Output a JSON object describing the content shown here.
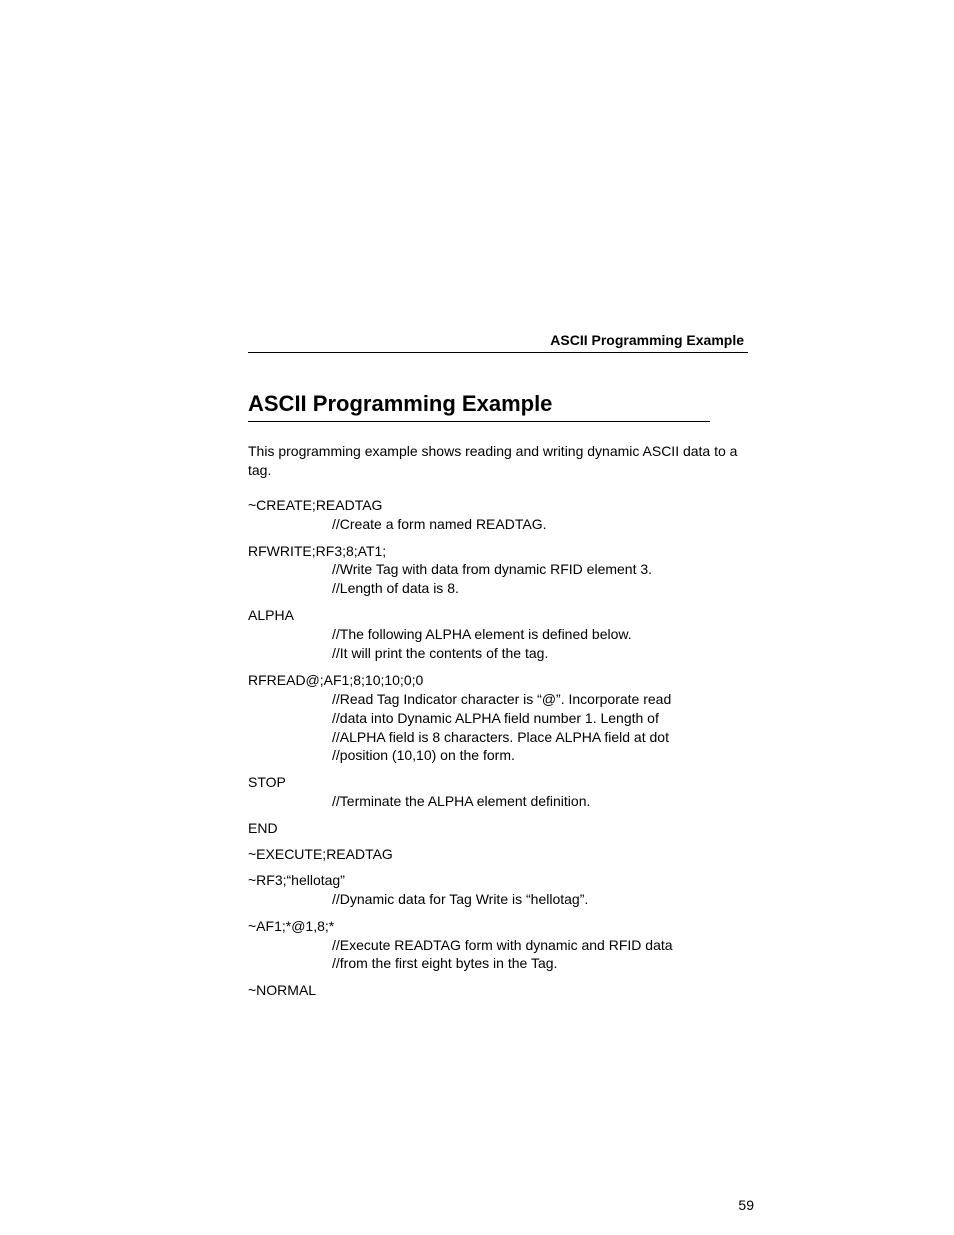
{
  "running_header": "ASCII Programming Example",
  "section_title": "ASCII Programming Example",
  "intro": "This programming example shows reading and writing dynamic ASCII data to a tag.",
  "blocks": [
    {
      "cmd": "~CREATE;READTAG",
      "comments": [
        "//Create a form named READTAG."
      ]
    },
    {
      "cmd": "RFWRITE;RF3;8;AT1;",
      "comments": [
        "//Write Tag with data from dynamic RFID element 3.",
        "//Length of data is 8."
      ]
    },
    {
      "cmd": "ALPHA",
      "comments": [
        "//The following ALPHA element is defined below.",
        "//It will print the contents of the tag."
      ]
    },
    {
      "cmd": "RFREAD@;AF1;8;10;10;0;0",
      "comments": [
        "//Read Tag Indicator character is “@”. Incorporate read",
        "//data into Dynamic ALPHA field number 1. Length of",
        "//ALPHA field is 8 characters. Place ALPHA field at dot",
        "//position (10,10) on the form."
      ]
    },
    {
      "cmd": "STOP",
      "comments": [
        "//Terminate the ALPHA element definition."
      ]
    },
    {
      "cmd": "END",
      "comments": []
    },
    {
      "cmd": "~EXECUTE;READTAG",
      "comments": []
    },
    {
      "cmd": "~RF3;“hellotag”",
      "comments": [
        "//Dynamic data for Tag Write is “hellotag”."
      ]
    },
    {
      "cmd": "~AF1;*@1,8;*",
      "comments": [
        "//Execute READTAG form with dynamic and RFID data",
        "//from the first eight bytes in the Tag."
      ]
    },
    {
      "cmd": "~NORMAL",
      "comments": []
    }
  ],
  "page_number": "59"
}
